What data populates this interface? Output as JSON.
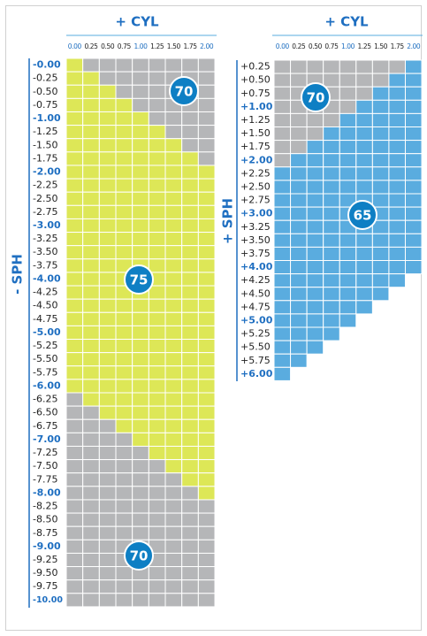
{
  "zones": [
    {
      "index": 75,
      "color": "#dde757"
    },
    {
      "index": 70,
      "color": "#b5b6b8"
    },
    {
      "index": 65,
      "color": "#5aacdf"
    }
  ],
  "left": {
    "title": "+ CYL",
    "axis_label": "- SPH",
    "columns": [
      "0.00",
      "0.25",
      "0.50",
      "0.75",
      "1.00",
      "1.25",
      "1.50",
      "1.75",
      "2.00"
    ],
    "rows": [
      "-0.00",
      "-0.25",
      "-0.50",
      "-0.75",
      "-1.00",
      "-1.25",
      "-1.50",
      "-1.75",
      "-2.00",
      "-2.25",
      "-2.50",
      "-2.75",
      "-3.00",
      "-3.25",
      "-3.50",
      "-3.75",
      "-4.00",
      "-4.25",
      "-4.50",
      "-4.75",
      "-5.00",
      "-5.25",
      "-5.50",
      "-5.75",
      "-6.00",
      "-6.25",
      "-6.50",
      "-6.75",
      "-7.00",
      "-7.25",
      "-7.50",
      "-7.75",
      "-8.00",
      "-8.25",
      "-8.50",
      "-8.75",
      "-9.00",
      "-9.25",
      "-9.50",
      "-9.75",
      "-10.00"
    ],
    "cells": [
      [
        75,
        70,
        70,
        70,
        70,
        70,
        70,
        70,
        70
      ],
      [
        75,
        75,
        70,
        70,
        70,
        70,
        70,
        70,
        70
      ],
      [
        75,
        75,
        75,
        70,
        70,
        70,
        70,
        70,
        70
      ],
      [
        75,
        75,
        75,
        75,
        70,
        70,
        70,
        70,
        70
      ],
      [
        75,
        75,
        75,
        75,
        75,
        70,
        70,
        70,
        70
      ],
      [
        75,
        75,
        75,
        75,
        75,
        75,
        70,
        70,
        70
      ],
      [
        75,
        75,
        75,
        75,
        75,
        75,
        75,
        70,
        70
      ],
      [
        75,
        75,
        75,
        75,
        75,
        75,
        75,
        75,
        70
      ],
      [
        75,
        75,
        75,
        75,
        75,
        75,
        75,
        75,
        75
      ],
      [
        75,
        75,
        75,
        75,
        75,
        75,
        75,
        75,
        75
      ],
      [
        75,
        75,
        75,
        75,
        75,
        75,
        75,
        75,
        75
      ],
      [
        75,
        75,
        75,
        75,
        75,
        75,
        75,
        75,
        75
      ],
      [
        75,
        75,
        75,
        75,
        75,
        75,
        75,
        75,
        75
      ],
      [
        75,
        75,
        75,
        75,
        75,
        75,
        75,
        75,
        75
      ],
      [
        75,
        75,
        75,
        75,
        75,
        75,
        75,
        75,
        75
      ],
      [
        75,
        75,
        75,
        75,
        75,
        75,
        75,
        75,
        75
      ],
      [
        75,
        75,
        75,
        75,
        75,
        75,
        75,
        75,
        75
      ],
      [
        75,
        75,
        75,
        75,
        75,
        75,
        75,
        75,
        75
      ],
      [
        75,
        75,
        75,
        75,
        75,
        75,
        75,
        75,
        75
      ],
      [
        75,
        75,
        75,
        75,
        75,
        75,
        75,
        75,
        75
      ],
      [
        75,
        75,
        75,
        75,
        75,
        75,
        75,
        75,
        75
      ],
      [
        75,
        75,
        75,
        75,
        75,
        75,
        75,
        75,
        75
      ],
      [
        75,
        75,
        75,
        75,
        75,
        75,
        75,
        75,
        75
      ],
      [
        75,
        75,
        75,
        75,
        75,
        75,
        75,
        75,
        75
      ],
      [
        75,
        75,
        75,
        75,
        75,
        75,
        75,
        75,
        75
      ],
      [
        70,
        75,
        75,
        75,
        75,
        75,
        75,
        75,
        75
      ],
      [
        70,
        70,
        75,
        75,
        75,
        75,
        75,
        75,
        75
      ],
      [
        70,
        70,
        70,
        75,
        75,
        75,
        75,
        75,
        75
      ],
      [
        70,
        70,
        70,
        70,
        75,
        75,
        75,
        75,
        75
      ],
      [
        70,
        70,
        70,
        70,
        70,
        75,
        75,
        75,
        75
      ],
      [
        70,
        70,
        70,
        70,
        70,
        70,
        75,
        75,
        75
      ],
      [
        70,
        70,
        70,
        70,
        70,
        70,
        70,
        75,
        75
      ],
      [
        70,
        70,
        70,
        70,
        70,
        70,
        70,
        70,
        75
      ],
      [
        70,
        70,
        70,
        70,
        70,
        70,
        70,
        70,
        70
      ],
      [
        70,
        70,
        70,
        70,
        70,
        70,
        70,
        70,
        70
      ],
      [
        70,
        70,
        70,
        70,
        70,
        70,
        70,
        70,
        70
      ],
      [
        70,
        70,
        70,
        70,
        70,
        70,
        70,
        70,
        70
      ],
      [
        70,
        70,
        70,
        70,
        70,
        70,
        70,
        70,
        70
      ],
      [
        70,
        70,
        70,
        70,
        70,
        70,
        70,
        70,
        70
      ],
      [
        70,
        70,
        70,
        70,
        70,
        70,
        70,
        70,
        70
      ],
      [
        70,
        70,
        70,
        70,
        70,
        70,
        70,
        70,
        70
      ]
    ],
    "badges": [
      "70",
      "75",
      "70"
    ]
  },
  "right": {
    "title": "+ CYL",
    "axis_label": "+ SPH",
    "columns": [
      "0.00",
      "0.25",
      "0.50",
      "0.75",
      "1.00",
      "1.25",
      "1.50",
      "1.75",
      "2.00"
    ],
    "rows": [
      "+0.25",
      "+0.50",
      "+0.75",
      "+1.00",
      "+1.25",
      "+1.50",
      "+1.75",
      "+2.00",
      "+2.25",
      "+2.50",
      "+2.75",
      "+3.00",
      "+3.25",
      "+3.50",
      "+3.75",
      "+4.00",
      "+4.25",
      "+4.50",
      "+4.75",
      "+5.00",
      "+5.25",
      "+5.50",
      "+5.75",
      "+6.00"
    ],
    "cells": [
      [
        70,
        70,
        70,
        70,
        70,
        70,
        70,
        70,
        65
      ],
      [
        70,
        70,
        70,
        70,
        70,
        70,
        70,
        65,
        65
      ],
      [
        70,
        70,
        70,
        70,
        70,
        70,
        65,
        65,
        65
      ],
      [
        70,
        70,
        70,
        70,
        70,
        65,
        65,
        65,
        65
      ],
      [
        70,
        70,
        70,
        70,
        65,
        65,
        65,
        65,
        65
      ],
      [
        70,
        70,
        70,
        65,
        65,
        65,
        65,
        65,
        65
      ],
      [
        70,
        70,
        65,
        65,
        65,
        65,
        65,
        65,
        65
      ],
      [
        70,
        65,
        65,
        65,
        65,
        65,
        65,
        65,
        65
      ],
      [
        65,
        65,
        65,
        65,
        65,
        65,
        65,
        65,
        65
      ],
      [
        65,
        65,
        65,
        65,
        65,
        65,
        65,
        65,
        65
      ],
      [
        65,
        65,
        65,
        65,
        65,
        65,
        65,
        65,
        65
      ],
      [
        65,
        65,
        65,
        65,
        65,
        65,
        65,
        65,
        65
      ],
      [
        65,
        65,
        65,
        65,
        65,
        65,
        65,
        65,
        65
      ],
      [
        65,
        65,
        65,
        65,
        65,
        65,
        65,
        65,
        65
      ],
      [
        65,
        65,
        65,
        65,
        65,
        65,
        65,
        65,
        65
      ],
      [
        65,
        65,
        65,
        65,
        65,
        65,
        65,
        65,
        65
      ],
      [
        65,
        65,
        65,
        65,
        65,
        65,
        65,
        65
      ],
      [
        65,
        65,
        65,
        65,
        65,
        65,
        65
      ],
      [
        65,
        65,
        65,
        65,
        65,
        65
      ],
      [
        65,
        65,
        65,
        65,
        65
      ],
      [
        65,
        65,
        65,
        65
      ],
      [
        65,
        65,
        65
      ],
      [
        65,
        65
      ],
      [
        65
      ]
    ],
    "badges": [
      "70",
      "65"
    ]
  }
}
